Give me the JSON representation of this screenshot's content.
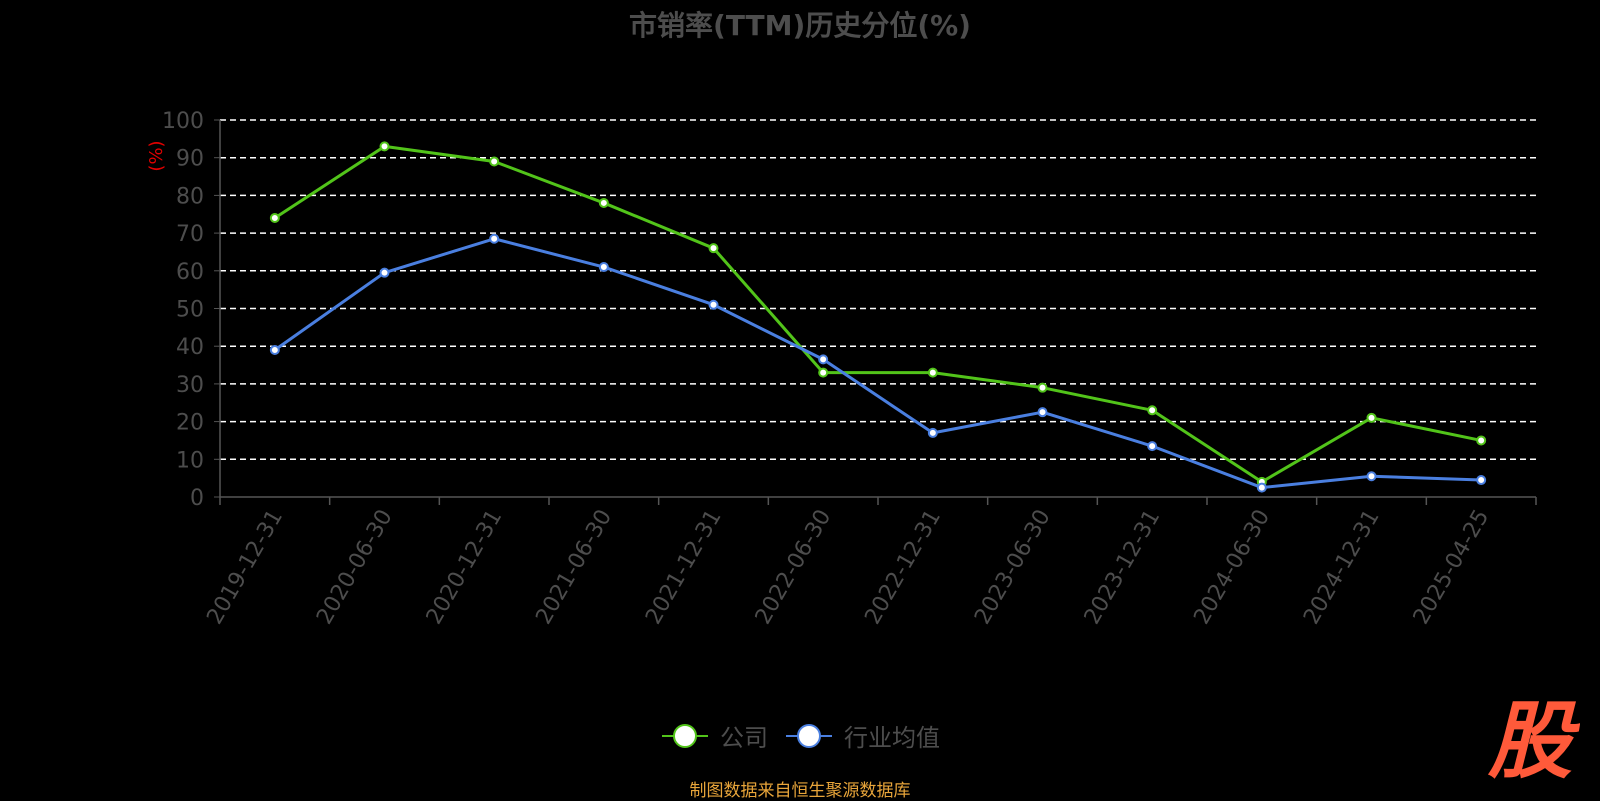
{
  "chart_data": {
    "type": "line",
    "title": "市销率(TTM)历史分位(%)",
    "ylabel": "(%)",
    "xlabel": "",
    "categories": [
      "2019-12-31",
      "2020-06-30",
      "2020-12-31",
      "2021-06-30",
      "2021-12-31",
      "2022-06-30",
      "2022-12-31",
      "2023-06-30",
      "2023-12-31",
      "2024-06-30",
      "2024-12-31",
      "2025-04-25"
    ],
    "ylim": [
      0,
      100
    ],
    "yticks": [
      0,
      10,
      20,
      30,
      40,
      50,
      60,
      70,
      80,
      90,
      100
    ],
    "series": [
      {
        "name": "公司",
        "color": "#52c41a",
        "values": [
          74,
          93,
          89,
          78,
          66,
          33,
          33,
          29,
          23,
          4,
          21,
          15
        ]
      },
      {
        "name": "行业均值",
        "color": "#4a7fe0",
        "values": [
          39,
          59.5,
          68.5,
          61,
          51,
          36.5,
          17,
          22.5,
          13.5,
          2.5,
          5.5,
          4.5
        ]
      }
    ],
    "grid": true,
    "legend": "bottom-center"
  },
  "footer": {
    "source": "制图数据来自恒生聚源数据库"
  },
  "watermark": {
    "text": "股"
  }
}
